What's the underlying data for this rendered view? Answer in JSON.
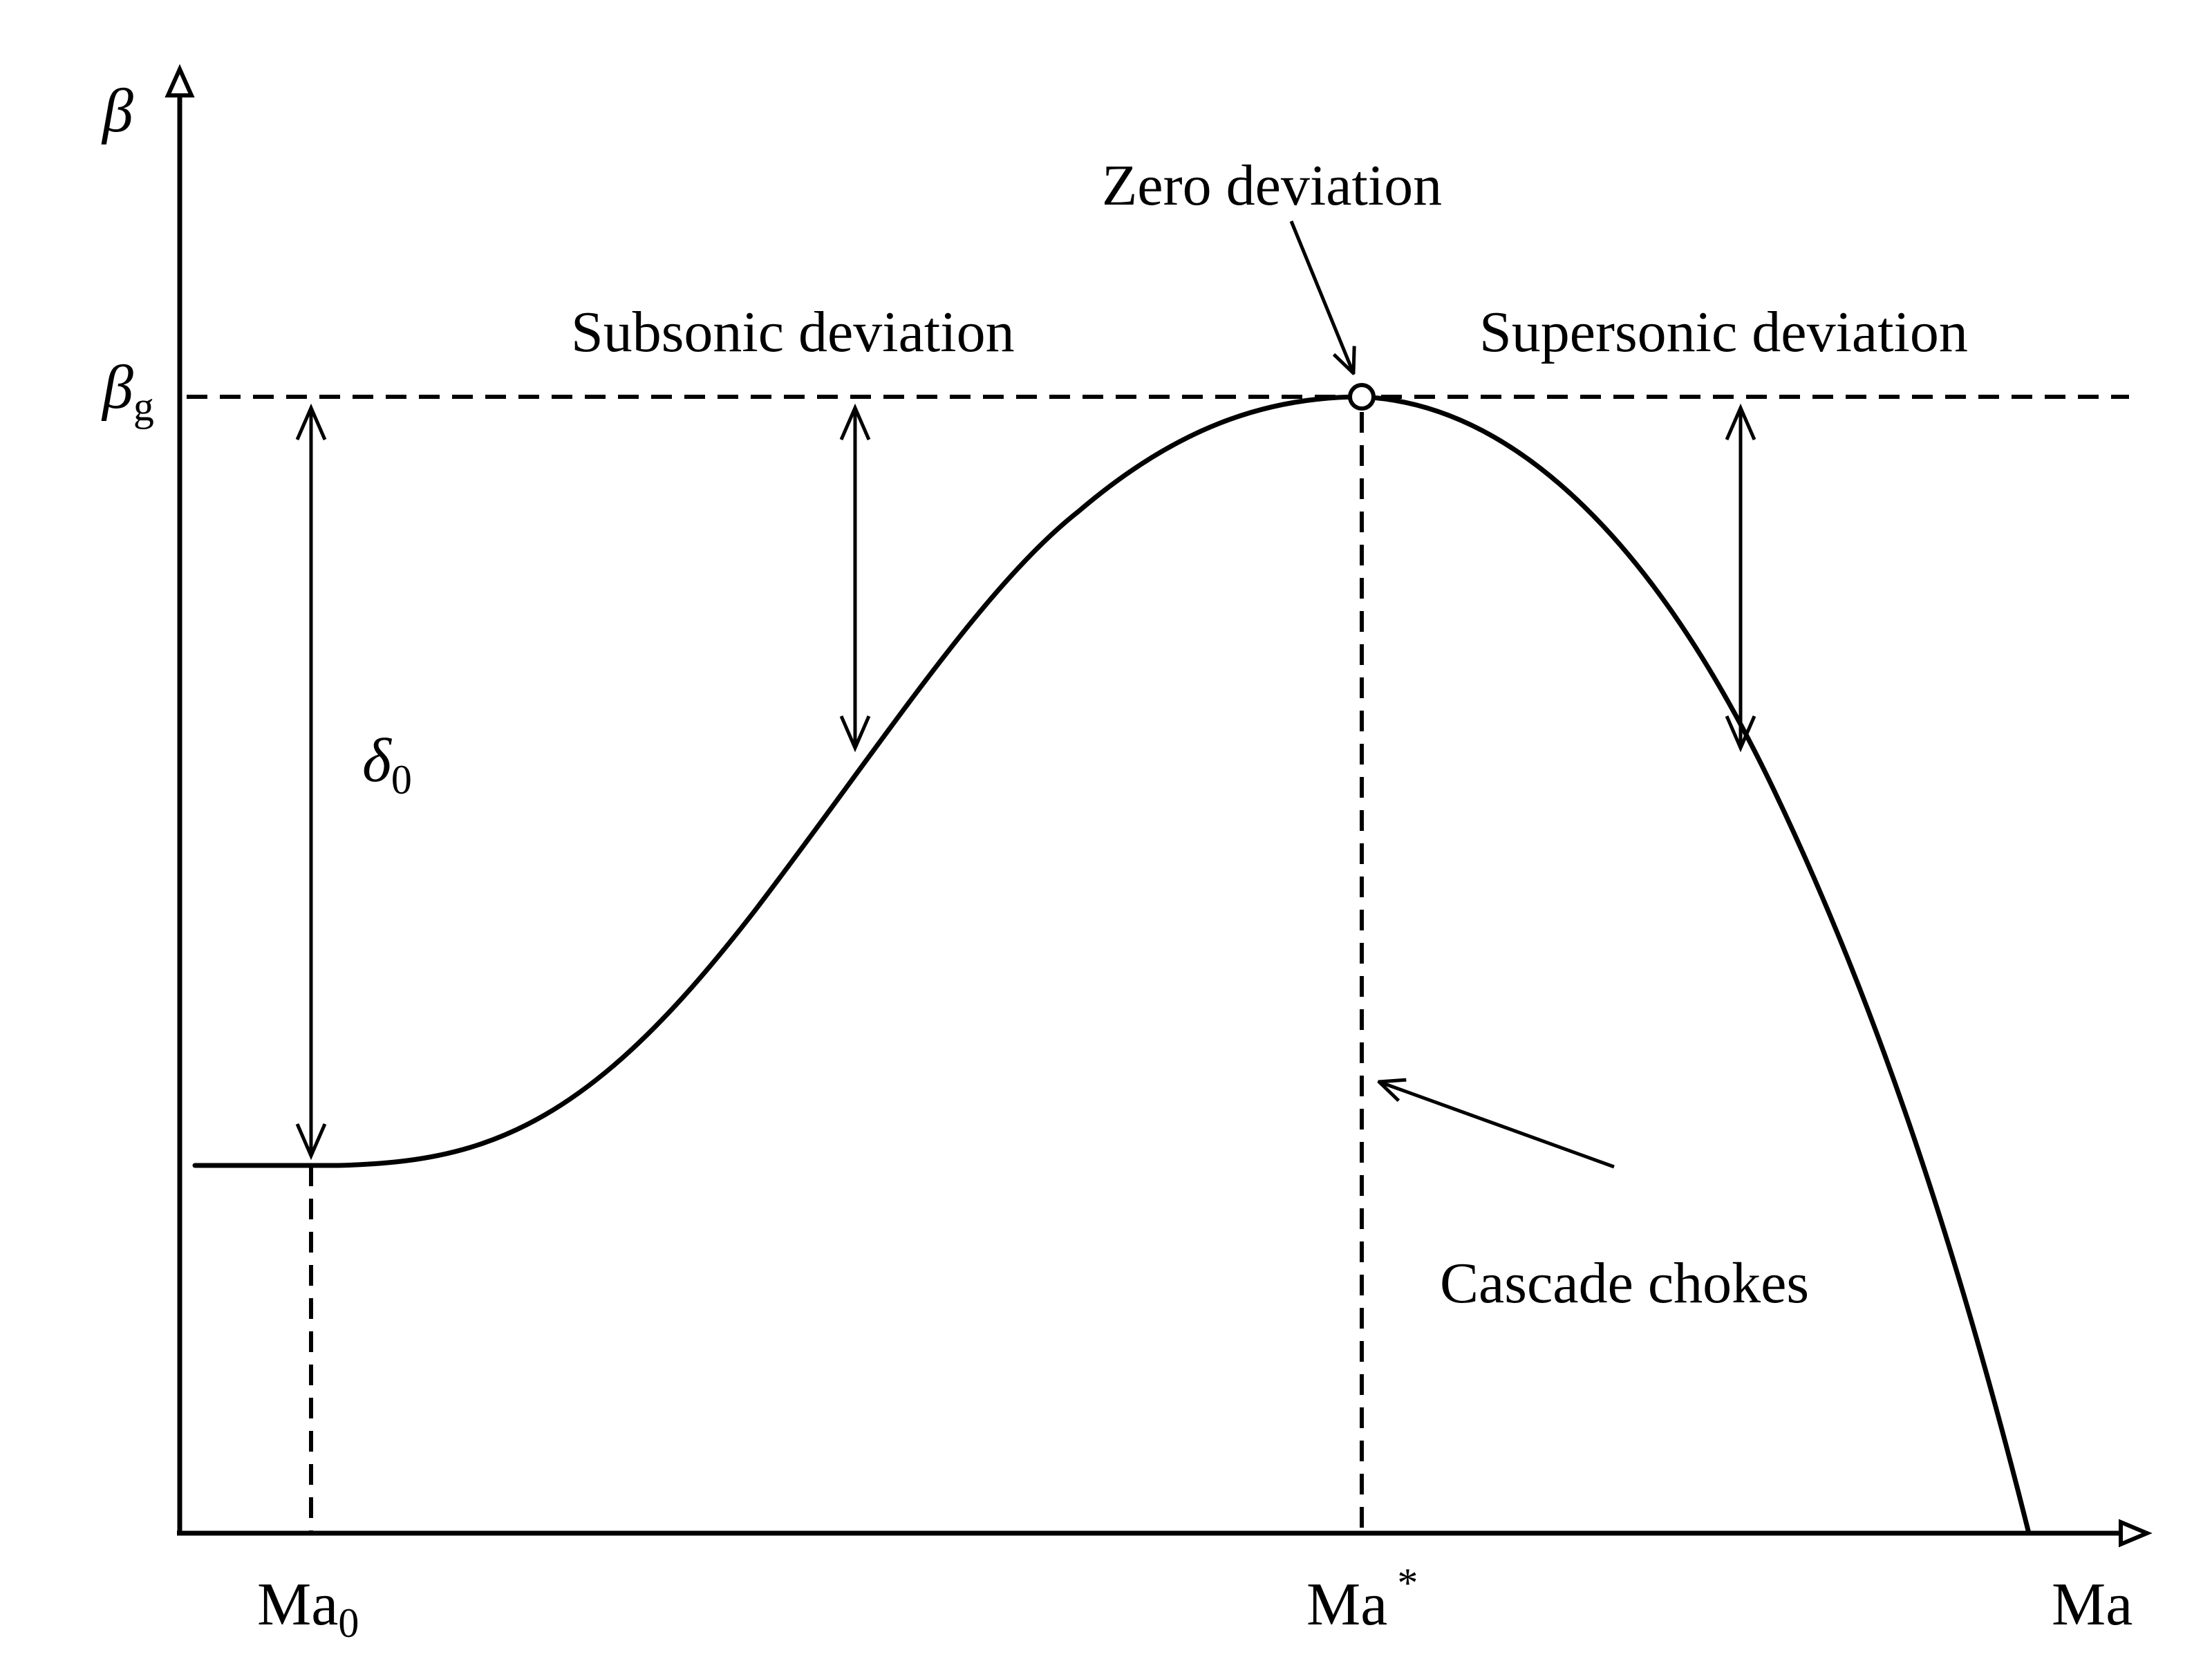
{
  "axes": {
    "y_symbol": "β",
    "x_label": "Ma"
  },
  "markers": {
    "beta_g": {
      "base": "β",
      "sub": "g"
    },
    "delta0": {
      "base": "δ",
      "sub": "0"
    },
    "ma0": {
      "base": "Ma",
      "sub": "0"
    },
    "ma_star": {
      "base": "Ma",
      "sup": "*"
    }
  },
  "annotations": {
    "zero_deviation": "Zero deviation",
    "subsonic_deviation": "Subsonic deviation",
    "supersonic_deviation": "Supersonic deviation",
    "cascade_chokes": "Cascade chokes"
  },
  "colors": {
    "ink": "#000000",
    "background": "#ffffff"
  }
}
